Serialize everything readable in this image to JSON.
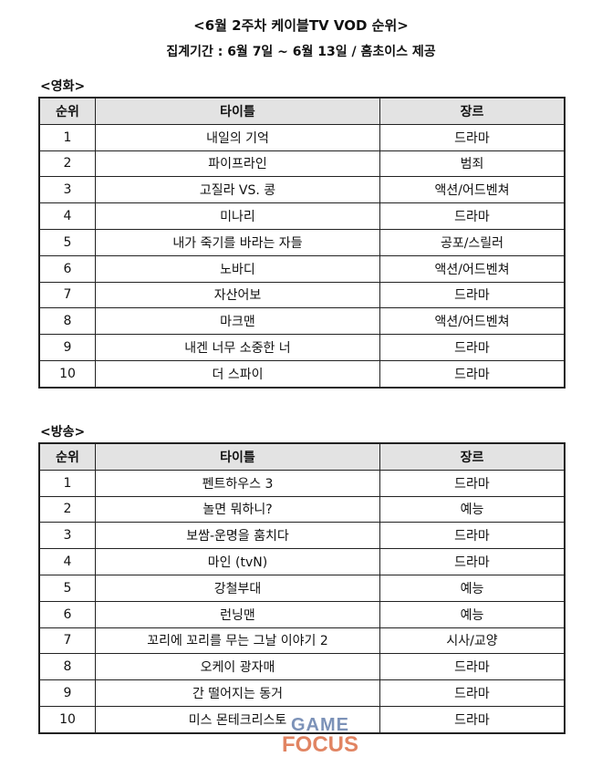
{
  "header": {
    "title": "<6월 2주차 케이블TV VOD 순위>",
    "subtitle": "집계기간 : 6월 7일 ~ 6월 13일 / 홈초이스 제공"
  },
  "columns": {
    "rank": "순위",
    "title": "타이틀",
    "genre": "장르"
  },
  "movies": {
    "label": "<영화>",
    "rows": [
      {
        "rank": "1",
        "title": "내일의 기억",
        "genre": "드라마"
      },
      {
        "rank": "2",
        "title": "파이프라인",
        "genre": "범죄"
      },
      {
        "rank": "3",
        "title": "고질라 VS. 콩",
        "genre": "액션/어드벤쳐"
      },
      {
        "rank": "4",
        "title": "미나리",
        "genre": "드라마"
      },
      {
        "rank": "5",
        "title": "내가 죽기를 바라는 자들",
        "genre": "공포/스릴러"
      },
      {
        "rank": "6",
        "title": "노바디",
        "genre": "액션/어드벤쳐"
      },
      {
        "rank": "7",
        "title": "자산어보",
        "genre": "드라마"
      },
      {
        "rank": "8",
        "title": "마크맨",
        "genre": "액션/어드벤쳐"
      },
      {
        "rank": "9",
        "title": "내겐 너무 소중한 너",
        "genre": "드라마"
      },
      {
        "rank": "10",
        "title": "더 스파이",
        "genre": "드라마"
      }
    ]
  },
  "broadcast": {
    "label": "<방송>",
    "rows": [
      {
        "rank": "1",
        "title": "펜트하우스 3",
        "genre": "드라마"
      },
      {
        "rank": "2",
        "title": "놀면 뭐하니?",
        "genre": "예능"
      },
      {
        "rank": "3",
        "title": "보쌈-운명을 훔치다",
        "genre": "드라마"
      },
      {
        "rank": "4",
        "title": "마인 (tvN)",
        "genre": "드라마"
      },
      {
        "rank": "5",
        "title": "강철부대",
        "genre": "예능"
      },
      {
        "rank": "6",
        "title": "런닝맨",
        "genre": "예능"
      },
      {
        "rank": "7",
        "title": "꼬리에 꼬리를 무는 그날 이야기 2",
        "genre": "시사/교양"
      },
      {
        "rank": "8",
        "title": "오케이 광자매",
        "genre": "드라마"
      },
      {
        "rank": "9",
        "title": "간 떨어지는 동거",
        "genre": "드라마"
      },
      {
        "rank": "10",
        "title": "미스 몬테크리스토",
        "genre": "드라마"
      }
    ]
  },
  "watermark": {
    "line1": "GAME",
    "line2": "FOCUS"
  }
}
